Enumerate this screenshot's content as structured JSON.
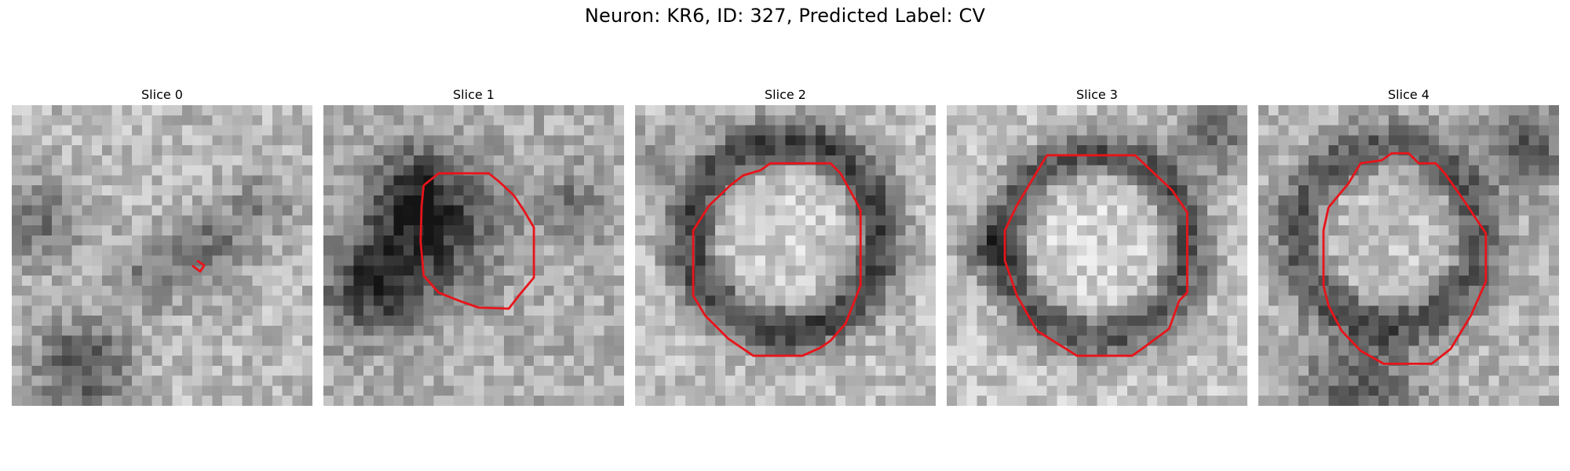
{
  "figure": {
    "title": "Neuron: KR6, ID: 327, Predicted Label: CV"
  },
  "panels": [
    {
      "title": "Slice 0",
      "outline": "tiny"
    },
    {
      "title": "Slice 1",
      "outline": "small"
    },
    {
      "title": "Slice 2",
      "outline": "ring"
    },
    {
      "title": "Slice 3",
      "outline": "ring"
    },
    {
      "title": "Slice 4",
      "outline": "ring"
    }
  ],
  "colors": {
    "contour": "#e8141a",
    "background": "#ffffff"
  },
  "image": {
    "colormap": "grayscale",
    "grid": "30x30 pixels per slice"
  }
}
